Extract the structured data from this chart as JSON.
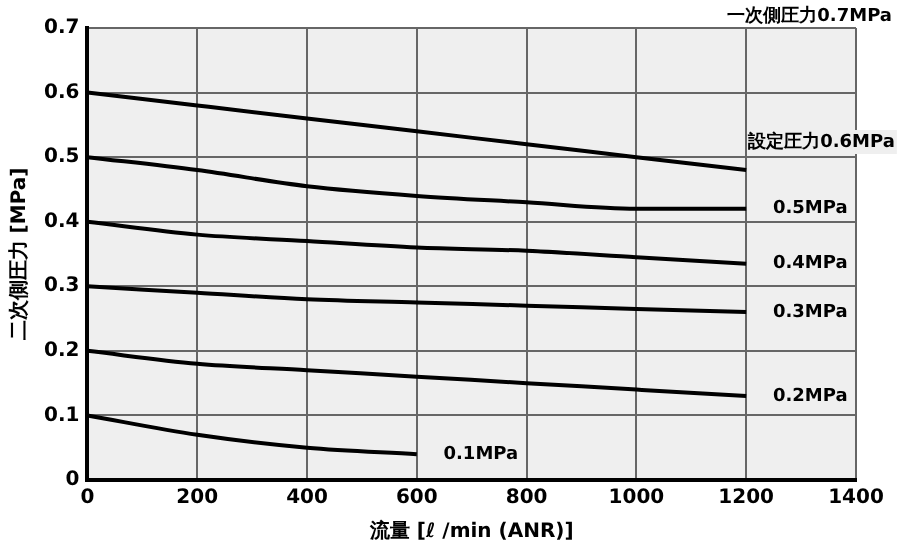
{
  "chart_data": {
    "type": "line",
    "xlabel": "流量 [ℓ /min (ANR)]",
    "ylabel": "二次側圧力 [MPa]",
    "annotations": [
      "一次側圧力0.7MPa"
    ],
    "x": [
      0,
      200,
      400,
      600,
      800,
      1000,
      1200
    ],
    "series": [
      {
        "name": "設定圧力0.6MPa",
        "color": "#000000",
        "values": [
          0.6,
          0.58,
          0.56,
          0.54,
          0.52,
          0.5,
          0.48
        ]
      },
      {
        "name": "0.5MPa",
        "color": "#000000",
        "values": [
          0.5,
          0.48,
          0.455,
          0.44,
          0.43,
          0.42,
          0.42
        ]
      },
      {
        "name": "0.4MPa",
        "color": "#000000",
        "values": [
          0.4,
          0.38,
          0.37,
          0.36,
          0.355,
          0.345,
          0.335
        ]
      },
      {
        "name": "0.3MPa",
        "color": "#000000",
        "values": [
          0.3,
          0.29,
          0.28,
          0.275,
          0.27,
          0.265,
          0.26
        ]
      },
      {
        "name": "0.2MPa",
        "color": "#000000",
        "values": [
          0.2,
          0.18,
          0.17,
          0.16,
          0.15,
          0.14,
          0.13
        ]
      },
      {
        "name": "0.1MPa",
        "color": "#000000",
        "x": [
          0,
          200,
          400,
          600
        ],
        "values": [
          0.1,
          0.07,
          0.05,
          0.04
        ]
      }
    ],
    "xlim": [
      0,
      1400
    ],
    "xticks": [
      0,
      200,
      400,
      600,
      800,
      1000,
      1200,
      1400
    ],
    "ylim": [
      0,
      0.7
    ],
    "yticks": [
      0,
      0.1,
      0.2,
      0.3,
      0.4,
      0.5,
      0.6,
      0.7
    ],
    "grid": true,
    "legend": false,
    "marker": "none",
    "line_style": "solid"
  }
}
